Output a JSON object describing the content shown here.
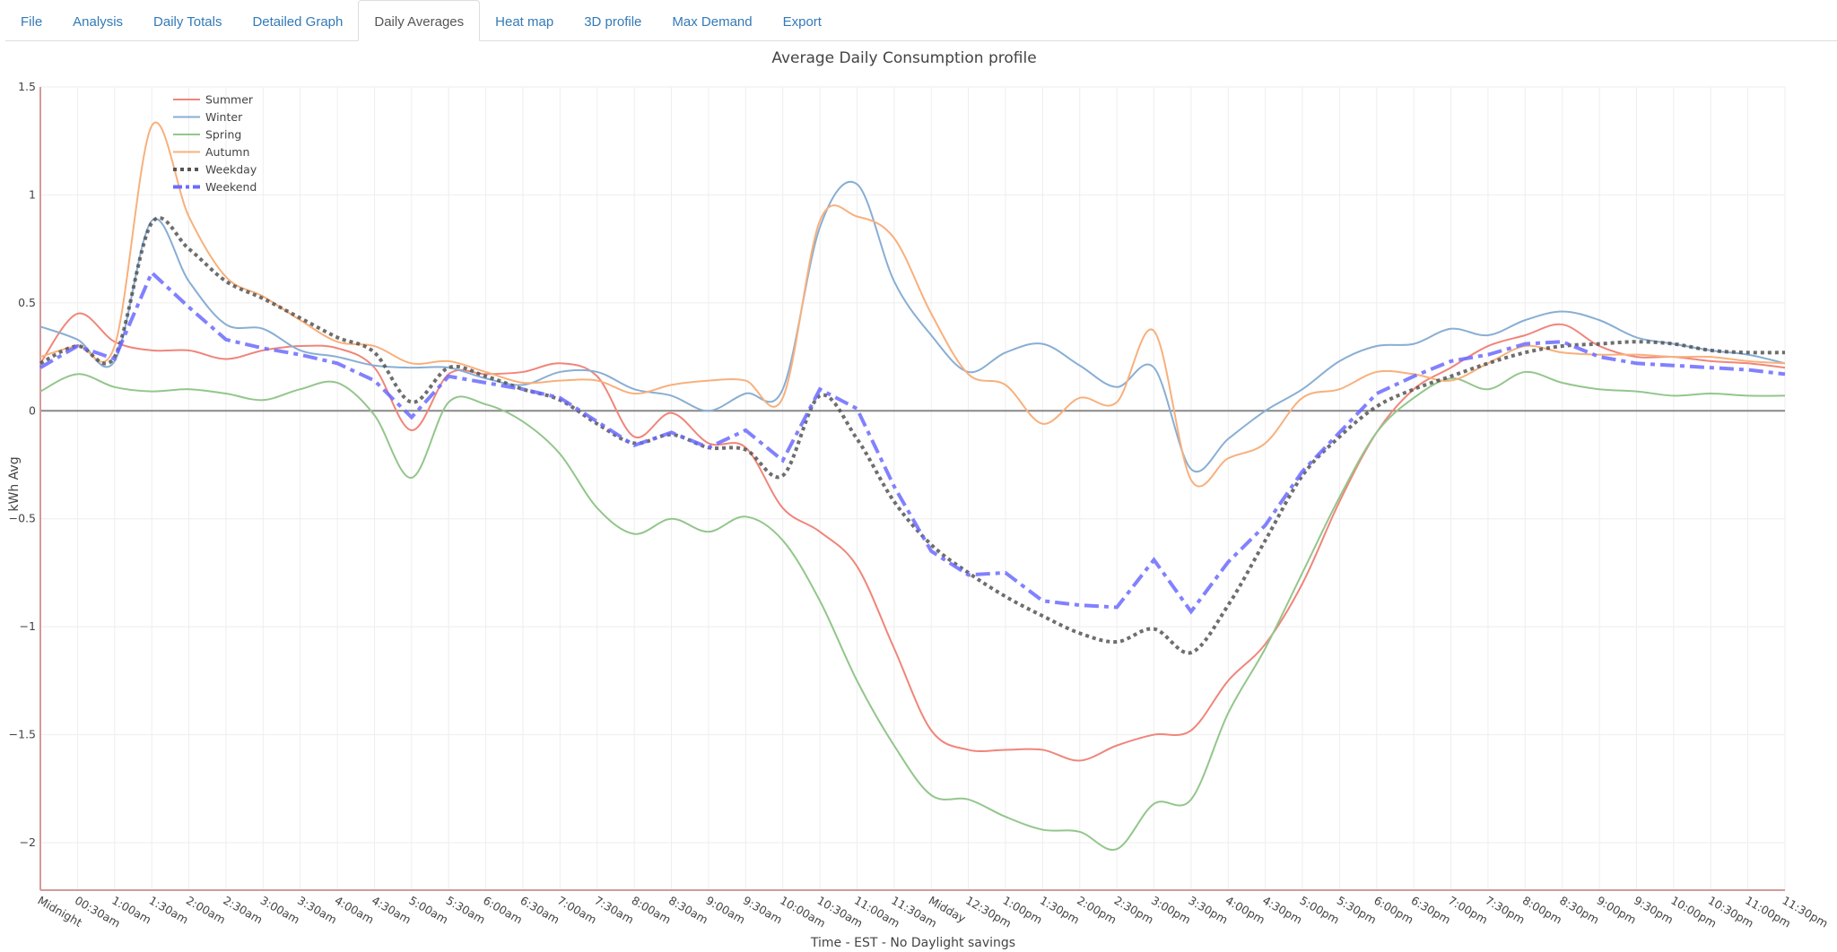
{
  "tabs": [
    {
      "label": "File",
      "active": false
    },
    {
      "label": "Analysis",
      "active": false
    },
    {
      "label": "Daily Totals",
      "active": false
    },
    {
      "label": "Detailed Graph",
      "active": false
    },
    {
      "label": "Daily Averages",
      "active": true
    },
    {
      "label": "Heat map",
      "active": false
    },
    {
      "label": "3D profile",
      "active": false
    },
    {
      "label": "Max Demand",
      "active": false
    },
    {
      "label": "Export",
      "active": false
    }
  ],
  "chart_data": {
    "type": "line",
    "title": "Average Daily Consumption profile",
    "xlabel": "Time - EST - No Daylight savings",
    "ylabel": "kWh Avg",
    "ylim": [
      -2.22,
      1.5
    ],
    "yticks": [
      1.5,
      1,
      0.5,
      0,
      -0.5,
      -1,
      -1.5,
      -2
    ],
    "ytick_labels": [
      "1.5",
      "1",
      "0.5",
      "0",
      "−0.5",
      "−1",
      "−1.5",
      "−2"
    ],
    "grid": true,
    "legend_position": "top-left",
    "categories": [
      "Midnight",
      "00:30am",
      "1:00am",
      "1:30am",
      "2:00am",
      "2:30am",
      "3:00am",
      "3:30am",
      "4:00am",
      "4:30am",
      "5:00am",
      "5:30am",
      "6:00am",
      "6:30am",
      "7:00am",
      "7:30am",
      "8:00am",
      "8:30am",
      "9:00am",
      "9:30am",
      "10:00am",
      "10:30am",
      "11:00am",
      "11:30am",
      "Midday",
      "12:30pm",
      "1:00pm",
      "1:30pm",
      "2:00pm",
      "2:30pm",
      "3:00pm",
      "3:30pm",
      "4:00pm",
      "4:30pm",
      "5:00pm",
      "5:30pm",
      "6:00pm",
      "6:30pm",
      "7:00pm",
      "7:30pm",
      "8:00pm",
      "8:30pm",
      "9:00pm",
      "9:30pm",
      "10:00pm",
      "10:30pm",
      "11:00pm",
      "11:30pm"
    ],
    "series": [
      {
        "name": "Summer",
        "color": "#f0857a",
        "style": "solid",
        "values": [
          0.22,
          0.45,
          0.32,
          0.28,
          0.28,
          0.24,
          0.28,
          0.3,
          0.29,
          0.2,
          -0.09,
          0.17,
          0.17,
          0.18,
          0.22,
          0.16,
          -0.12,
          -0.01,
          -0.15,
          -0.17,
          -0.45,
          -0.56,
          -0.72,
          -1.1,
          -1.48,
          -1.57,
          -1.57,
          -1.57,
          -1.62,
          -1.55,
          -1.5,
          -1.48,
          -1.25,
          -1.08,
          -0.8,
          -0.42,
          -0.1,
          0.1,
          0.2,
          0.3,
          0.35,
          0.4,
          0.3,
          0.25,
          0.25,
          0.23,
          0.22,
          0.2
        ]
      },
      {
        "name": "Winter",
        "color": "#88aed4",
        "style": "solid",
        "values": [
          0.39,
          0.33,
          0.23,
          0.88,
          0.6,
          0.4,
          0.38,
          0.28,
          0.25,
          0.21,
          0.2,
          0.2,
          0.15,
          0.12,
          0.18,
          0.18,
          0.1,
          0.07,
          0.0,
          0.08,
          0.1,
          0.85,
          1.05,
          0.6,
          0.35,
          0.18,
          0.27,
          0.31,
          0.21,
          0.11,
          0.2,
          -0.27,
          -0.13,
          0.0,
          0.1,
          0.23,
          0.3,
          0.31,
          0.38,
          0.35,
          0.42,
          0.46,
          0.42,
          0.34,
          0.31,
          0.28,
          0.26,
          0.22
        ]
      },
      {
        "name": "Spring",
        "color": "#93c68c",
        "style": "solid",
        "values": [
          0.09,
          0.17,
          0.11,
          0.09,
          0.1,
          0.08,
          0.05,
          0.1,
          0.13,
          -0.02,
          -0.31,
          0.04,
          0.03,
          -0.05,
          -0.2,
          -0.45,
          -0.57,
          -0.5,
          -0.56,
          -0.49,
          -0.6,
          -0.88,
          -1.25,
          -1.55,
          -1.78,
          -1.8,
          -1.88,
          -1.94,
          -1.95,
          -2.03,
          -1.82,
          -1.8,
          -1.4,
          -1.1,
          -0.75,
          -0.4,
          -0.1,
          0.06,
          0.15,
          0.1,
          0.18,
          0.13,
          0.1,
          0.09,
          0.07,
          0.08,
          0.07,
          0.07
        ]
      },
      {
        "name": "Autumn",
        "color": "#f8b07c",
        "style": "solid",
        "values": [
          0.25,
          0.3,
          0.3,
          1.32,
          0.9,
          0.62,
          0.53,
          0.42,
          0.32,
          0.3,
          0.22,
          0.23,
          0.18,
          0.13,
          0.14,
          0.14,
          0.08,
          0.12,
          0.14,
          0.14,
          0.06,
          0.88,
          0.9,
          0.8,
          0.45,
          0.17,
          0.12,
          -0.06,
          0.06,
          0.04,
          0.37,
          -0.32,
          -0.22,
          -0.15,
          0.06,
          0.1,
          0.18,
          0.17,
          0.14,
          0.22,
          0.3,
          0.27,
          0.26,
          0.26,
          0.25,
          0.25,
          0.23,
          0.22
        ]
      },
      {
        "name": "Weekday",
        "color": "#555555",
        "style": "dotted",
        "values": [
          0.22,
          0.3,
          0.25,
          0.87,
          0.75,
          0.6,
          0.52,
          0.43,
          0.34,
          0.27,
          0.04,
          0.2,
          0.16,
          0.1,
          0.05,
          -0.06,
          -0.15,
          -0.11,
          -0.17,
          -0.18,
          -0.3,
          0.07,
          -0.13,
          -0.42,
          -0.62,
          -0.75,
          -0.86,
          -0.95,
          -1.03,
          -1.07,
          -1.01,
          -1.12,
          -0.9,
          -0.6,
          -0.3,
          -0.12,
          0.02,
          0.1,
          0.16,
          0.22,
          0.27,
          0.3,
          0.31,
          0.32,
          0.31,
          0.28,
          0.27,
          0.27
        ]
      },
      {
        "name": "Weekend",
        "color": "#6b6bff",
        "style": "dashdot",
        "values": [
          0.2,
          0.3,
          0.24,
          0.64,
          0.48,
          0.33,
          0.29,
          0.26,
          0.22,
          0.14,
          -0.03,
          0.16,
          0.13,
          0.1,
          0.06,
          -0.05,
          -0.16,
          -0.1,
          -0.17,
          -0.09,
          -0.23,
          0.1,
          0.01,
          -0.35,
          -0.65,
          -0.76,
          -0.75,
          -0.88,
          -0.9,
          -0.91,
          -0.69,
          -0.93,
          -0.7,
          -0.53,
          -0.28,
          -0.1,
          0.08,
          0.16,
          0.23,
          0.26,
          0.31,
          0.32,
          0.25,
          0.22,
          0.21,
          0.2,
          0.19,
          0.17
        ]
      }
    ]
  }
}
